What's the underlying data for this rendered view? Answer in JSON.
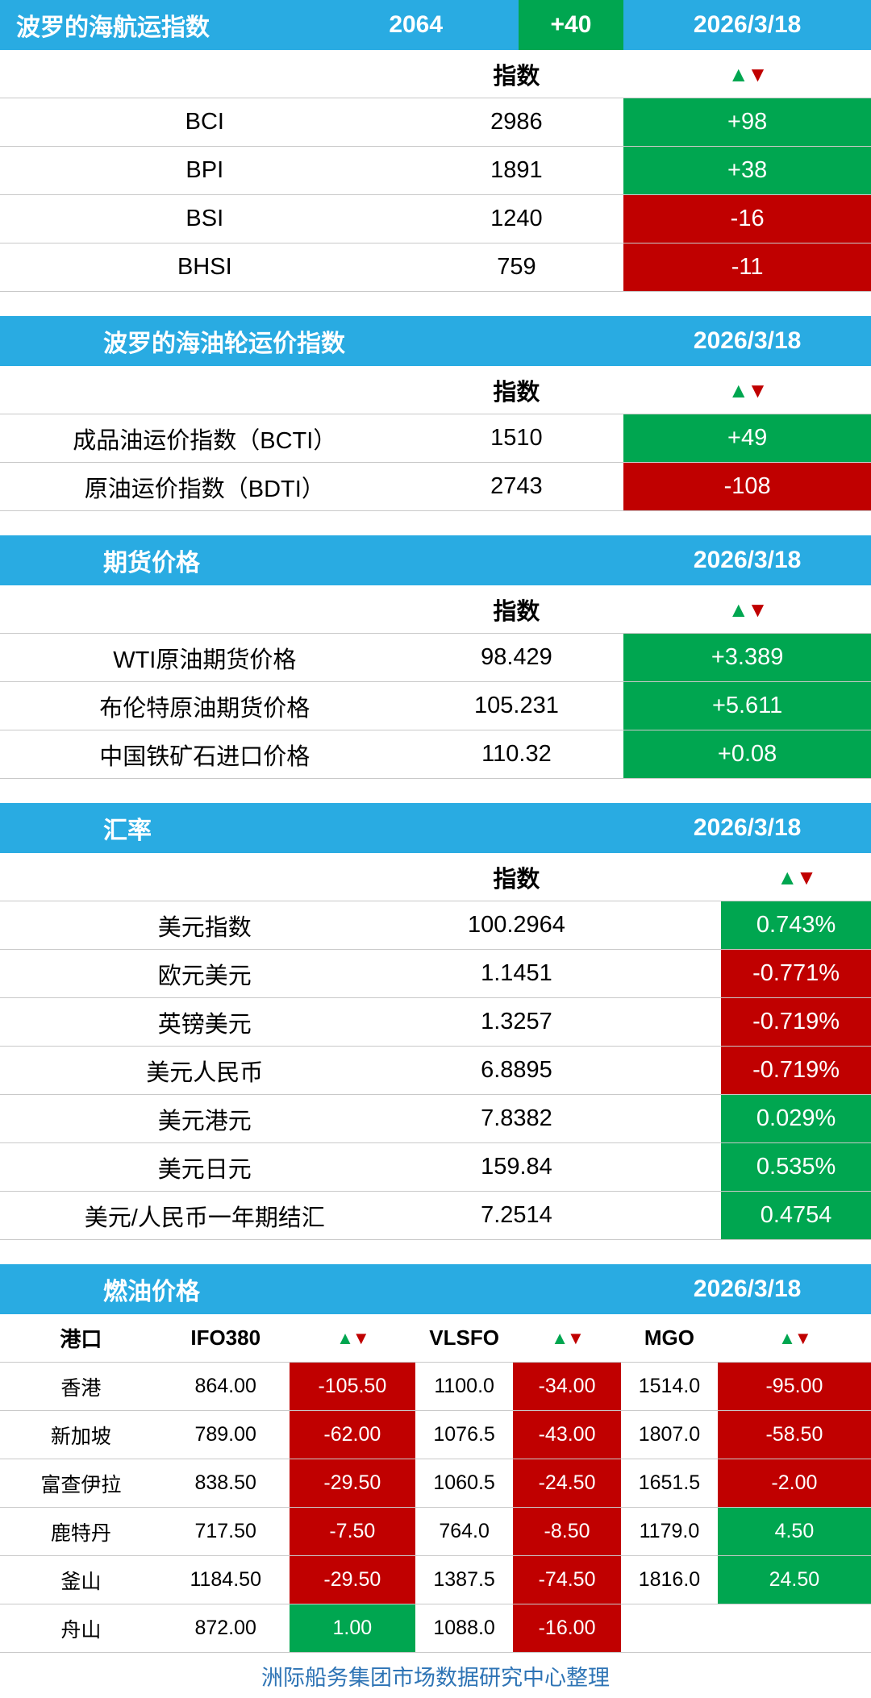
{
  "page": {
    "footer": "洲际船务集团市场数据研究中心整理"
  },
  "colors": {
    "header_blue": "#29ABE2",
    "up_green": "#00A650",
    "down_red": "#C00000",
    "footer_blue": "#2E74B5",
    "row_border": "#C9C9C9"
  },
  "icons": {
    "up_arrow": "▲",
    "down_arrow": "▼"
  },
  "chart_data": [
    {
      "type": "table",
      "title": "波罗的海航运指数",
      "headline_value": "2064",
      "headline_change": "+40",
      "headline_dir": "up",
      "date": "2026/3/18",
      "index_col": "指数",
      "rows": [
        {
          "label": "BCI",
          "value": "2986",
          "change": "+98",
          "dir": "up"
        },
        {
          "label": "BPI",
          "value": "1891",
          "change": "+38",
          "dir": "up"
        },
        {
          "label": "BSI",
          "value": "1240",
          "change": "-16",
          "dir": "down"
        },
        {
          "label": "BHSI",
          "value": "759",
          "change": "-11",
          "dir": "down"
        }
      ]
    },
    {
      "type": "table",
      "title": "波罗的海油轮运价指数",
      "date": "2026/3/18",
      "index_col": "指数",
      "rows": [
        {
          "label": "成品油运价指数（BCTI）",
          "value": "1510",
          "change": "+49",
          "dir": "up"
        },
        {
          "label": "原油运价指数（BDTI）",
          "value": "2743",
          "change": "-108",
          "dir": "down"
        }
      ]
    },
    {
      "type": "table",
      "title": "期货价格",
      "date": "2026/3/18",
      "index_col": "指数",
      "rows": [
        {
          "label": "WTI原油期货价格",
          "value": "98.429",
          "change": "+3.389",
          "dir": "up"
        },
        {
          "label": "布伦特原油期货价格",
          "value": "105.231",
          "change": "+5.611",
          "dir": "up"
        },
        {
          "label": "中国铁矿石进口价格",
          "value": "110.32",
          "change": "+0.08",
          "dir": "up"
        }
      ]
    },
    {
      "type": "table",
      "title": "汇率",
      "date": "2026/3/18",
      "index_col": "指数",
      "rows": [
        {
          "label": "美元指数",
          "value": "100.2964",
          "change": "0.743%",
          "dir": "up"
        },
        {
          "label": "欧元美元",
          "value": "1.1451",
          "change": "-0.771%",
          "dir": "down"
        },
        {
          "label": "英镑美元",
          "value": "1.3257",
          "change": "-0.719%",
          "dir": "down"
        },
        {
          "label": "美元人民币",
          "value": "6.8895",
          "change": "-0.719%",
          "dir": "down"
        },
        {
          "label": "美元港元",
          "value": "7.8382",
          "change": "0.029%",
          "dir": "up"
        },
        {
          "label": "美元日元",
          "value": "159.84",
          "change": "0.535%",
          "dir": "up"
        },
        {
          "label": "美元/人民币一年期结汇",
          "value": "7.2514",
          "change": "0.4754",
          "dir": "up"
        }
      ]
    },
    {
      "type": "table",
      "title": "燃油价格",
      "date": "2026/3/18",
      "columns": [
        "港口",
        "IFO380",
        "VLSFO",
        "MGO"
      ],
      "rows": [
        {
          "port": "香港",
          "ifo380": "864.00",
          "ifo380_chg": "-105.50",
          "ifo380_dir": "down",
          "vlsfo": "1100.0",
          "vlsfo_chg": "-34.00",
          "vlsfo_dir": "down",
          "mgo": "1514.0",
          "mgo_chg": "-95.00",
          "mgo_dir": "down"
        },
        {
          "port": "新加坡",
          "ifo380": "789.00",
          "ifo380_chg": "-62.00",
          "ifo380_dir": "down",
          "vlsfo": "1076.5",
          "vlsfo_chg": "-43.00",
          "vlsfo_dir": "down",
          "mgo": "1807.0",
          "mgo_chg": "-58.50",
          "mgo_dir": "down"
        },
        {
          "port": "富查伊拉",
          "ifo380": "838.50",
          "ifo380_chg": "-29.50",
          "ifo380_dir": "down",
          "vlsfo": "1060.5",
          "vlsfo_chg": "-24.50",
          "vlsfo_dir": "down",
          "mgo": "1651.5",
          "mgo_chg": "-2.00",
          "mgo_dir": "down"
        },
        {
          "port": "鹿特丹",
          "ifo380": "717.50",
          "ifo380_chg": "-7.50",
          "ifo380_dir": "down",
          "vlsfo": "764.0",
          "vlsfo_chg": "-8.50",
          "vlsfo_dir": "down",
          "mgo": "1179.0",
          "mgo_chg": "4.50",
          "mgo_dir": "up"
        },
        {
          "port": "釜山",
          "ifo380": "1184.50",
          "ifo380_chg": "-29.50",
          "ifo380_dir": "down",
          "vlsfo": "1387.5",
          "vlsfo_chg": "-74.50",
          "vlsfo_dir": "down",
          "mgo": "1816.0",
          "mgo_chg": "24.50",
          "mgo_dir": "up"
        },
        {
          "port": "舟山",
          "ifo380": "872.00",
          "ifo380_chg": "1.00",
          "ifo380_dir": "up",
          "vlsfo": "1088.0",
          "vlsfo_chg": "-16.00",
          "vlsfo_dir": "down",
          "mgo": "",
          "mgo_chg": "",
          "mgo_dir": "none"
        }
      ]
    }
  ]
}
